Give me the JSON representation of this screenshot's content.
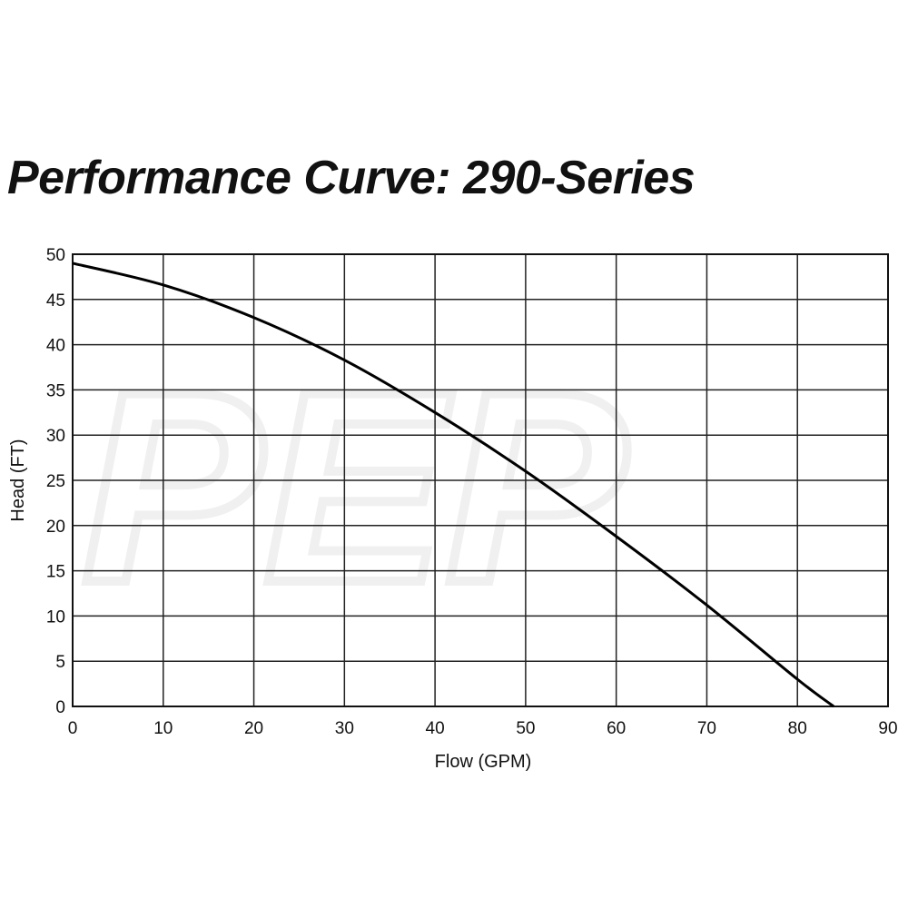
{
  "watermark": "PEP",
  "chart_data": {
    "type": "line",
    "title": "Performance Curve: 290-Series",
    "xlabel": "Flow (GPM)",
    "ylabel": "Head (FT)",
    "xlim": [
      0,
      90
    ],
    "ylim": [
      0,
      50
    ],
    "xticks": [
      0,
      10,
      20,
      30,
      40,
      50,
      60,
      70,
      80,
      90
    ],
    "yticks": [
      0,
      5,
      10,
      15,
      20,
      25,
      30,
      35,
      40,
      45,
      50
    ],
    "grid": true,
    "series": [
      {
        "name": "290-Series",
        "color": "#000000",
        "x": [
          0,
          10,
          20,
          30,
          40,
          50,
          60,
          70,
          80,
          84
        ],
        "y": [
          49,
          46.6,
          43,
          38.3,
          32.5,
          26,
          18.8,
          11.2,
          3,
          0
        ]
      }
    ]
  }
}
